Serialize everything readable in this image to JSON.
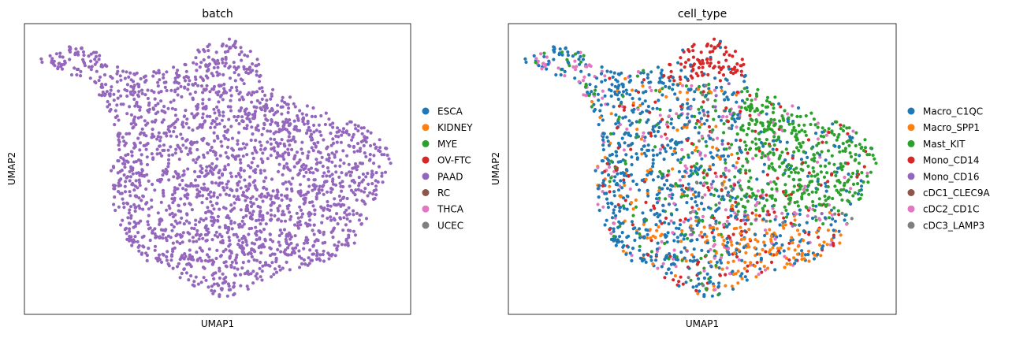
{
  "chart_data": [
    {
      "type": "scatter",
      "title": "batch",
      "xlabel": "UMAP1",
      "ylabel": "UMAP2",
      "xlim": [
        0,
        1
      ],
      "ylim": [
        0,
        1
      ],
      "grid": false,
      "legend_position": "right-outside",
      "series": [
        {
          "name": "ESCA",
          "color": "#1f77b4",
          "points": []
        },
        {
          "name": "KIDNEY",
          "color": "#ff7f0e",
          "points": []
        },
        {
          "name": "MYE",
          "color": "#2ca02c",
          "points": []
        },
        {
          "name": "OV-FTC",
          "color": "#d62728",
          "points": []
        },
        {
          "name": "PAAD",
          "color": "#9467bd",
          "points": "all"
        },
        {
          "name": "RC",
          "color": "#8c564b",
          "points": []
        },
        {
          "name": "THCA",
          "color": "#e377c2",
          "points": []
        },
        {
          "name": "UCEC",
          "color": "#7f7f7f",
          "points": []
        }
      ]
    },
    {
      "type": "scatter",
      "title": "cell_type",
      "xlabel": "UMAP1",
      "ylabel": "UMAP2",
      "xlim": [
        0,
        1
      ],
      "ylim": [
        0,
        1
      ],
      "grid": false,
      "legend_position": "right-outside",
      "series": [
        {
          "name": "Macro_C1QC",
          "color": "#1f77b4",
          "region": "left and lower body, widespread"
        },
        {
          "name": "Macro_SPP1",
          "color": "#ff7f0e",
          "region": "lower right, scattered center"
        },
        {
          "name": "Mast_KIT",
          "color": "#2ca02c",
          "region": "right lobe"
        },
        {
          "name": "Mono_CD14",
          "color": "#d62728",
          "region": "top lobe and scattered"
        },
        {
          "name": "Mono_CD16",
          "color": "#9467bd",
          "region": "scattered"
        },
        {
          "name": "cDC1_CLEC9A",
          "color": "#8c564b",
          "region": "sparse"
        },
        {
          "name": "cDC2_CD1C",
          "color": "#e377c2",
          "region": "top-left arm and scattered"
        },
        {
          "name": "cDC3_LAMP3",
          "color": "#7f7f7f",
          "region": "sparse"
        }
      ]
    }
  ]
}
